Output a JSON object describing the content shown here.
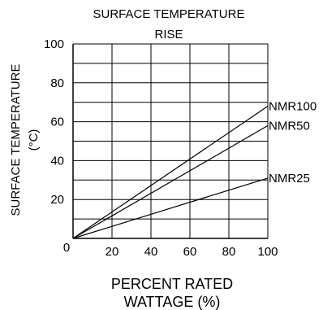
{
  "chart_data": {
    "type": "line",
    "title_lines": [
      "SURFACE TEMPERATURE",
      "RISE"
    ],
    "ylabel_lines": [
      "SURFACE TEMPERATURE",
      "(°C)"
    ],
    "xlabel_lines": [
      "PERCENT RATED",
      "WATTAGE (%)"
    ],
    "xlim": [
      0,
      100
    ],
    "ylim": [
      0,
      100
    ],
    "x_ticks": [
      0,
      20,
      40,
      60,
      80,
      100
    ],
    "x_tick_labels": [
      "0",
      "20",
      "40",
      "60",
      "80",
      "100"
    ],
    "y_ticks": [
      20,
      40,
      60,
      80,
      100
    ],
    "y_tick_labels": [
      "20",
      "40",
      "60",
      "80",
      "100"
    ],
    "grid": true,
    "series": [
      {
        "name": "NMR100",
        "x": [
          0,
          100
        ],
        "y": [
          0,
          68
        ]
      },
      {
        "name": "NMR50",
        "x": [
          0,
          100
        ],
        "y": [
          0,
          58
        ]
      },
      {
        "name": "NMR25",
        "x": [
          0,
          100
        ],
        "y": [
          0,
          31
        ]
      }
    ],
    "colors": {
      "line": "#000000",
      "grid": "#000000"
    }
  }
}
